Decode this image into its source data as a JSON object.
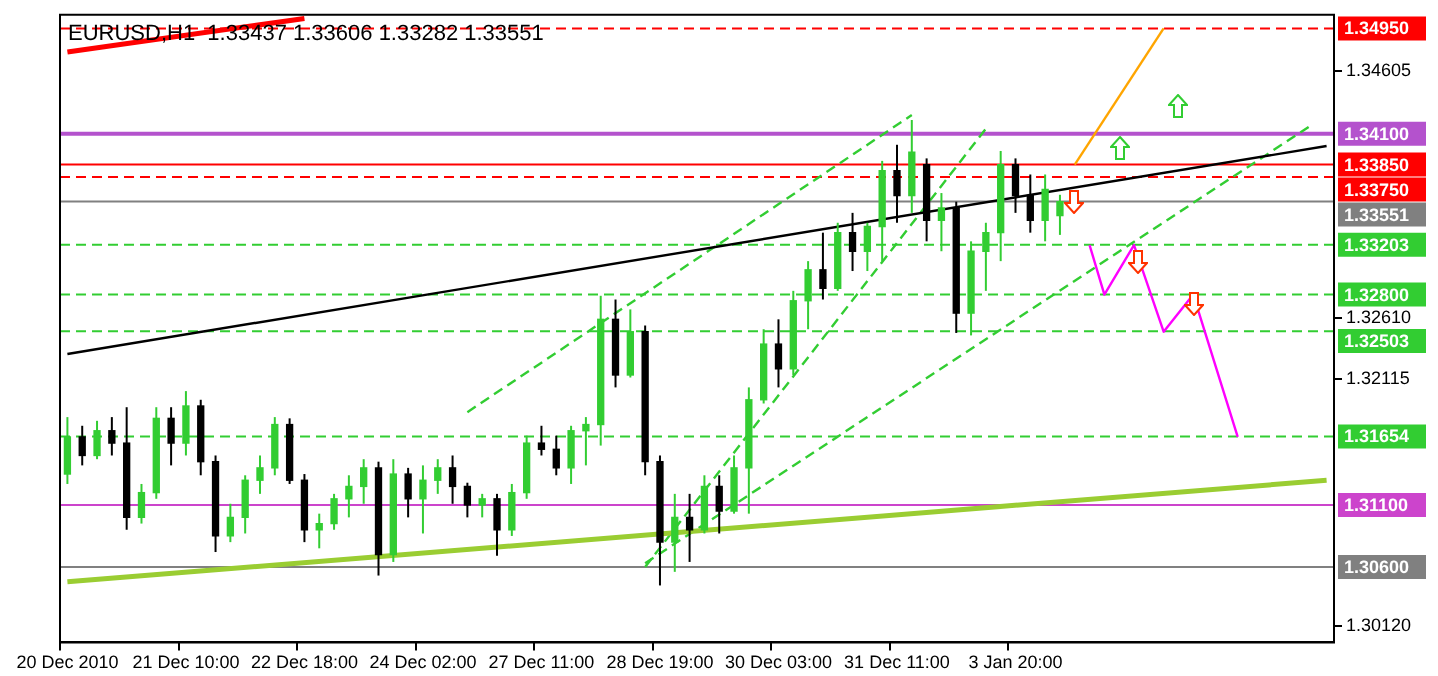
{
  "chart_data": {
    "type": "candlestick",
    "title": "EURUSD,H1  1.33437 1.33606 1.33282 1.33551",
    "categories": [
      "20 Dec 2010",
      null,
      null,
      null,
      null,
      null,
      null,
      null,
      "21 Dec 10:00",
      null,
      null,
      null,
      null,
      null,
      null,
      null,
      "22 Dec 18:00",
      null,
      null,
      null,
      null,
      null,
      null,
      null,
      "24 Dec 02:00",
      null,
      null,
      null,
      null,
      null,
      null,
      null,
      "27 Dec 11:00",
      null,
      null,
      null,
      null,
      null,
      null,
      null,
      "28 Dec 19:00",
      null,
      null,
      null,
      null,
      null,
      null,
      null,
      "30 Dec 03:00",
      null,
      null,
      null,
      null,
      null,
      null,
      null,
      "31 Dec 11:00",
      null,
      null,
      null,
      null,
      null,
      null,
      null,
      "3 Jan 20:00",
      null,
      null,
      null,
      null,
      null,
      null,
      null,
      null,
      null,
      null,
      null,
      null,
      null,
      null,
      null,
      null,
      null,
      null,
      null,
      null,
      null
    ],
    "ohlc": [
      [
        1.3135,
        1.3181,
        1.3127,
        1.3165
      ],
      [
        1.3165,
        1.3174,
        1.3142,
        1.315
      ],
      [
        1.315,
        1.3178,
        1.3147,
        1.317
      ],
      [
        1.317,
        1.3181,
        1.315,
        1.316
      ],
      [
        1.316,
        1.3189,
        1.309,
        1.31
      ],
      [
        1.31,
        1.3127,
        1.3095,
        1.312
      ],
      [
        1.312,
        1.3189,
        1.3115,
        1.318
      ],
      [
        1.318,
        1.3189,
        1.3142,
        1.316
      ],
      [
        1.316,
        1.3202,
        1.315,
        1.319
      ],
      [
        1.319,
        1.3195,
        1.3134,
        1.3145
      ],
      [
        1.3145,
        1.315,
        1.3072,
        1.3085
      ],
      [
        1.3085,
        1.3111,
        1.308,
        1.31
      ],
      [
        1.31,
        1.3134,
        1.3087,
        1.313
      ],
      [
        1.313,
        1.315,
        1.3119,
        1.314
      ],
      [
        1.314,
        1.3181,
        1.3134,
        1.3175
      ],
      [
        1.3175,
        1.318,
        1.3127,
        1.313
      ],
      [
        1.313,
        1.3135,
        1.308,
        1.309
      ],
      [
        1.309,
        1.3103,
        1.3075,
        1.3095
      ],
      [
        1.3095,
        1.3119,
        1.309,
        1.3115
      ],
      [
        1.3115,
        1.3134,
        1.31,
        1.3125
      ],
      [
        1.3125,
        1.3147,
        1.3111,
        1.314
      ],
      [
        1.314,
        1.3145,
        1.3053,
        1.307
      ],
      [
        1.307,
        1.3147,
        1.3064,
        1.3135
      ],
      [
        1.3135,
        1.314,
        1.31,
        1.3115
      ],
      [
        1.3115,
        1.3142,
        1.3087,
        1.313
      ],
      [
        1.313,
        1.3147,
        1.3119,
        1.314
      ],
      [
        1.314,
        1.315,
        1.3111,
        1.3125
      ],
      [
        1.3125,
        1.3128,
        1.31,
        1.311
      ],
      [
        1.311,
        1.3119,
        1.31,
        1.3115
      ],
      [
        1.3115,
        1.3119,
        1.3069,
        1.309
      ],
      [
        1.309,
        1.3127,
        1.3085,
        1.312
      ],
      [
        1.312,
        1.3166,
        1.3115,
        1.316
      ],
      [
        1.316,
        1.3174,
        1.315,
        1.3155
      ],
      [
        1.3155,
        1.3166,
        1.3134,
        1.314
      ],
      [
        1.314,
        1.3174,
        1.3127,
        1.317
      ],
      [
        1.317,
        1.3181,
        1.3142,
        1.3175
      ],
      [
        1.3175,
        1.3279,
        1.3158,
        1.326
      ],
      [
        1.326,
        1.3276,
        1.3205,
        1.3215
      ],
      [
        1.3215,
        1.3268,
        1.3213,
        1.325
      ],
      [
        1.325,
        1.3255,
        1.3134,
        1.3145
      ],
      [
        1.3145,
        1.315,
        1.3045,
        1.308
      ],
      [
        1.308,
        1.3119,
        1.3056,
        1.31
      ],
      [
        1.31,
        1.3119,
        1.3064,
        1.309
      ],
      [
        1.309,
        1.3134,
        1.3087,
        1.3125
      ],
      [
        1.3125,
        1.3134,
        1.3087,
        1.3105
      ],
      [
        1.3105,
        1.315,
        1.3103,
        1.314
      ],
      [
        1.314,
        1.3205,
        1.3103,
        1.3195
      ],
      [
        1.3195,
        1.3252,
        1.3192,
        1.324
      ],
      [
        1.324,
        1.326,
        1.3205,
        1.322
      ],
      [
        1.322,
        1.3283,
        1.3215,
        1.3275
      ],
      [
        1.3275,
        1.3307,
        1.3252,
        1.33
      ],
      [
        1.33,
        1.333,
        1.3276,
        1.3285
      ],
      [
        1.3285,
        1.3338,
        1.3283,
        1.333
      ],
      [
        1.333,
        1.3346,
        1.3299,
        1.3315
      ],
      [
        1.3315,
        1.3338,
        1.3299,
        1.3335
      ],
      [
        1.3335,
        1.3388,
        1.3307,
        1.338
      ],
      [
        1.338,
        1.3401,
        1.3338,
        1.336
      ],
      [
        1.336,
        1.3421,
        1.3346,
        1.3395
      ],
      [
        1.3385,
        1.339,
        1.3323,
        1.334
      ],
      [
        1.334,
        1.3362,
        1.3315,
        1.335
      ],
      [
        1.335,
        1.3355,
        1.3249,
        1.3265
      ],
      [
        1.3265,
        1.3323,
        1.3247,
        1.3315
      ],
      [
        1.3315,
        1.3338,
        1.3283,
        1.333
      ],
      [
        1.333,
        1.3396,
        1.3307,
        1.3385
      ],
      [
        1.3385,
        1.339,
        1.3346,
        1.336
      ],
      [
        1.336,
        1.3377,
        1.333,
        1.334
      ],
      [
        1.334,
        1.3377,
        1.3323,
        1.3365
      ],
      [
        1.33437,
        1.33606,
        1.33282,
        1.33551
      ],
      null,
      null,
      null,
      null,
      null,
      null,
      null,
      null,
      null,
      null,
      null,
      null,
      null,
      null,
      null,
      null,
      null,
      null
    ],
    "series": [
      {
        "type": "line",
        "color": "#000000",
        "line_style": "solid",
        "values": [
          1.3232,
          null,
          null,
          null,
          null,
          null,
          null,
          null,
          null,
          null,
          null,
          null,
          null,
          null,
          null,
          null,
          null,
          null,
          null,
          null,
          null,
          null,
          null,
          null,
          null,
          null,
          null,
          null,
          null,
          null,
          null,
          null,
          null,
          null,
          null,
          null,
          null,
          null,
          null,
          null,
          null,
          null,
          null,
          null,
          null,
          null,
          null,
          null,
          null,
          null,
          null,
          null,
          null,
          null,
          null,
          null,
          null,
          null,
          null,
          null,
          null,
          null,
          null,
          null,
          null,
          null,
          null,
          null,
          null,
          null,
          null,
          null,
          null,
          null,
          null,
          null,
          null,
          null,
          null,
          null,
          null,
          null,
          null,
          null,
          null,
          1.34
        ]
      },
      {
        "type": "line",
        "color": "#9acd32",
        "line_style": "solid",
        "values": [
          1.3048,
          null,
          null,
          null,
          null,
          null,
          null,
          null,
          null,
          null,
          null,
          null,
          null,
          null,
          null,
          null,
          null,
          null,
          null,
          null,
          null,
          null,
          null,
          null,
          null,
          null,
          null,
          null,
          null,
          null,
          null,
          null,
          null,
          null,
          null,
          null,
          null,
          null,
          null,
          null,
          null,
          null,
          null,
          null,
          null,
          null,
          null,
          null,
          null,
          null,
          null,
          null,
          null,
          null,
          null,
          null,
          null,
          null,
          null,
          null,
          null,
          null,
          null,
          null,
          null,
          null,
          null,
          null,
          null,
          null,
          null,
          null,
          null,
          null,
          null,
          null,
          null,
          null,
          null,
          null,
          null,
          null,
          null,
          null,
          null,
          1.313
        ]
      },
      {
        "type": "line",
        "color": "#ff0000",
        "line_style": "solid",
        "values": [
          1.3476,
          null,
          null,
          null,
          null,
          null,
          null,
          null,
          null,
          null,
          null,
          null,
          null,
          null,
          null,
          null,
          1.3503,
          null,
          null,
          null,
          null,
          null,
          null,
          null,
          null,
          null,
          null,
          null,
          null,
          null,
          null,
          null,
          null,
          null,
          null,
          null,
          null,
          null,
          null,
          null,
          null,
          null,
          null,
          null,
          null,
          null,
          null,
          null,
          null,
          null,
          null,
          null,
          null,
          null,
          null,
          null,
          null,
          null,
          null,
          null,
          null,
          null,
          null,
          null,
          null,
          null,
          null,
          null,
          null,
          null,
          null,
          null,
          null,
          null,
          null,
          null,
          null,
          null,
          null,
          null,
          null,
          null,
          null,
          null,
          null,
          null
        ]
      },
      {
        "type": "line",
        "color": "#32cd32",
        "line_style": "dashed",
        "values": [
          null,
          null,
          null,
          null,
          null,
          null,
          null,
          null,
          null,
          null,
          null,
          null,
          null,
          null,
          null,
          null,
          null,
          null,
          null,
          null,
          null,
          null,
          null,
          null,
          null,
          null,
          null,
          1.3185,
          null,
          null,
          null,
          null,
          null,
          null,
          null,
          null,
          null,
          null,
          null,
          null,
          null,
          null,
          null,
          null,
          null,
          null,
          null,
          null,
          null,
          null,
          null,
          null,
          null,
          null,
          null,
          null,
          null,
          1.3425,
          null,
          null,
          null,
          null,
          null,
          null,
          null,
          null,
          null,
          null,
          null,
          null,
          null,
          null,
          null,
          null,
          null,
          null,
          null,
          null,
          null,
          null,
          null,
          null,
          null,
          null,
          null,
          null
        ]
      },
      {
        "type": "line",
        "color": "#32cd32",
        "line_style": "dashed",
        "values": [
          null,
          null,
          null,
          null,
          null,
          null,
          null,
          null,
          null,
          null,
          null,
          null,
          null,
          null,
          null,
          null,
          null,
          null,
          null,
          null,
          null,
          null,
          null,
          null,
          null,
          null,
          null,
          null,
          null,
          null,
          null,
          null,
          null,
          null,
          null,
          null,
          null,
          null,
          null,
          1.306,
          null,
          null,
          null,
          null,
          null,
          null,
          null,
          null,
          null,
          null,
          null,
          null,
          null,
          null,
          null,
          null,
          null,
          null,
          null,
          null,
          null,
          null,
          1.3414,
          null,
          null,
          null,
          null,
          null,
          null,
          null,
          null,
          null,
          null,
          null,
          null,
          null,
          null,
          null,
          null,
          null,
          null,
          null,
          null,
          null,
          null,
          null
        ]
      },
      {
        "type": "line",
        "color": "#32cd32",
        "line_style": "dashed",
        "values": [
          null,
          null,
          null,
          null,
          null,
          null,
          null,
          null,
          null,
          null,
          null,
          null,
          null,
          null,
          null,
          null,
          null,
          null,
          null,
          null,
          null,
          null,
          null,
          null,
          null,
          null,
          null,
          null,
          null,
          null,
          null,
          null,
          null,
          null,
          null,
          null,
          null,
          null,
          null,
          1.3063,
          null,
          null,
          null,
          null,
          null,
          null,
          null,
          null,
          null,
          null,
          null,
          null,
          null,
          null,
          null,
          null,
          null,
          null,
          null,
          null,
          null,
          null,
          null,
          null,
          null,
          null,
          null,
          null,
          null,
          null,
          null,
          null,
          null,
          null,
          null,
          null,
          null,
          null,
          null,
          null,
          null,
          null,
          null,
          null,
          1.3417,
          null
        ]
      },
      {
        "type": "line",
        "color": "#ffa500",
        "line_style": "solid",
        "values": [
          null,
          null,
          null,
          null,
          null,
          null,
          null,
          null,
          null,
          null,
          null,
          null,
          null,
          null,
          null,
          null,
          null,
          null,
          null,
          null,
          null,
          null,
          null,
          null,
          null,
          null,
          null,
          null,
          null,
          null,
          null,
          null,
          null,
          null,
          null,
          null,
          null,
          null,
          null,
          null,
          null,
          null,
          null,
          null,
          null,
          null,
          null,
          null,
          null,
          null,
          null,
          null,
          null,
          null,
          null,
          null,
          null,
          null,
          null,
          null,
          null,
          null,
          null,
          null,
          null,
          null,
          null,
          null,
          1.3385,
          null,
          null,
          null,
          null,
          null,
          1.3495,
          null,
          null,
          null,
          null,
          null,
          null,
          null,
          null,
          null,
          null,
          null
        ]
      },
      {
        "type": "line",
        "color": "#ff00ff",
        "line_style": "solid",
        "values": [
          null,
          null,
          null,
          null,
          null,
          null,
          null,
          null,
          null,
          null,
          null,
          null,
          null,
          null,
          null,
          null,
          null,
          null,
          null,
          null,
          null,
          null,
          null,
          null,
          null,
          null,
          null,
          null,
          null,
          null,
          null,
          null,
          null,
          null,
          null,
          null,
          null,
          null,
          null,
          null,
          null,
          null,
          null,
          null,
          null,
          null,
          null,
          null,
          null,
          null,
          null,
          null,
          null,
          null,
          null,
          null,
          null,
          null,
          null,
          null,
          null,
          null,
          null,
          null,
          null,
          null,
          null,
          null,
          null,
          1.332,
          1.328,
          null,
          1.332,
          null,
          1.325,
          null,
          1.328,
          null,
          null,
          1.3165,
          null,
          null,
          null,
          null,
          null,
          null
        ]
      }
    ],
    "ylim": [
      1.2999,
      1.3506
    ],
    "yticks": [
      {
        "value": 1.3012,
        "label": "1.30120"
      },
      {
        "value": 1.32115,
        "label": "1.32115"
      },
      {
        "value": 1.3261,
        "label": "1.32610"
      },
      {
        "value": 1.34605,
        "label": "1.34605"
      }
    ],
    "ref_lines": [
      {
        "axis": "y",
        "value": 1.3495,
        "label": "1.34950",
        "color": "#ff0000",
        "line_style": "dashed"
      },
      {
        "axis": "y",
        "value": 1.341,
        "label": "1.34100",
        "color": "#b452cd",
        "line_style": "solid"
      },
      {
        "axis": "y",
        "value": 1.3385,
        "label": "1.33850",
        "color": "#ff0000",
        "line_style": "solid"
      },
      {
        "axis": "y",
        "value": 1.3375,
        "label": "1.33750",
        "color": "#ff0000",
        "line_style": "dashed"
      },
      {
        "axis": "y",
        "value": 1.33551,
        "label": "1.33551",
        "color": "#808080",
        "line_style": "solid"
      },
      {
        "axis": "y",
        "value": 1.33203,
        "label": "1.33203",
        "color": "#32cd32",
        "line_style": "dashed"
      },
      {
        "axis": "y",
        "value": 1.328,
        "label": "1.32800",
        "color": "#32cd32",
        "line_style": "dashed"
      },
      {
        "axis": "y",
        "value": 1.32503,
        "label": "1.32503",
        "color": "#32cd32",
        "line_style": "dashed"
      },
      {
        "axis": "y",
        "value": 1.31654,
        "label": "1.31654",
        "color": "#32cd32",
        "line_style": "dashed"
      },
      {
        "axis": "y",
        "value": 1.311,
        "label": "1.31100",
        "color": "#cc44cc",
        "line_style": "solid"
      },
      {
        "axis": "y",
        "value": 1.306,
        "label": "1.30600",
        "color": "#808080",
        "line_style": "solid"
      }
    ],
    "marker": "none",
    "grid": false,
    "legend": false
  }
}
